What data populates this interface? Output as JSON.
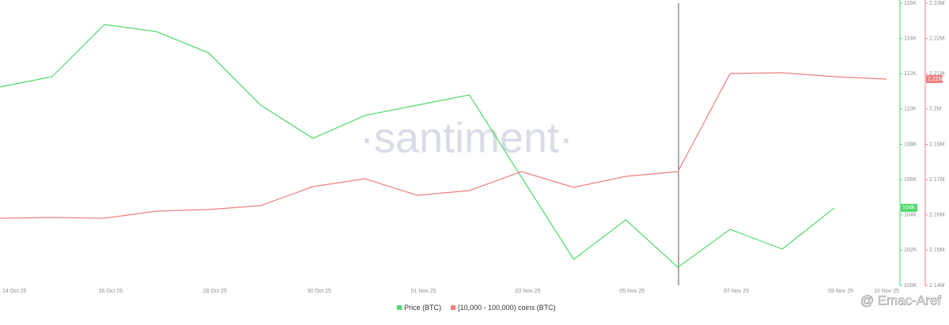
{
  "chart_data": {
    "type": "line",
    "watermark": "·santiment·",
    "credit": "@ Emac-Aref",
    "categories": [
      "24 Oct 25",
      null,
      "26 Oct 25",
      null,
      "28 Oct 25",
      null,
      "30 Oct 25",
      null,
      "01 Nov 25",
      null,
      "03 Nov 25",
      null,
      "05 Nov 25",
      null,
      "07 Nov 25",
      null,
      "09 Nov 25",
      "10 Nov 25"
    ],
    "series": [
      {
        "name": "Price (BTC)",
        "color": "#4cd96a",
        "axis": "y",
        "current_label": "104K",
        "values": [
          111250,
          111830,
          114790,
          114390,
          113180,
          110220,
          108340,
          109640,
          110220,
          110800,
          106140,
          101480,
          103720,
          101030,
          103180,
          102060,
          104400,
          null
        ]
      },
      {
        "name": "[10,000 - 100,000) coins (BTC)",
        "color": "#f07e7e",
        "axis": "y2",
        "current_label": "2.21M",
        "values": [
          2161430,
          2161680,
          2161430,
          2163700,
          2164200,
          2165460,
          2171510,
          2174030,
          2168740,
          2170250,
          2176300,
          2171260,
          2174790,
          2176300,
          2207560,
          2207820,
          2206550,
          2205800
        ]
      }
    ],
    "ylim": [
      100000,
      116000
    ],
    "yticks": [
      {
        "value": 100000,
        "label": "100K"
      },
      {
        "value": 102000,
        "label": "102K"
      },
      {
        "value": 104000,
        "label": "104K"
      },
      {
        "value": 106000,
        "label": "106K"
      },
      {
        "value": 108000,
        "label": "108K"
      },
      {
        "value": 110000,
        "label": "110K"
      },
      {
        "value": 112000,
        "label": "112K"
      },
      {
        "value": 114000,
        "label": "114K"
      },
      {
        "value": 116000,
        "label": "116K"
      }
    ],
    "y2lim": [
      2140000,
      2230000
    ],
    "y2ticks": [
      {
        "value": 2140000,
        "label": "2.14M"
      },
      {
        "value": 2151250,
        "label": "2.15M"
      },
      {
        "value": 2162500,
        "label": "2.16M"
      },
      {
        "value": 2173750,
        "label": "2.17M"
      },
      {
        "value": 2185000,
        "label": "2.19M"
      },
      {
        "value": 2196250,
        "label": "2.2M"
      },
      {
        "value": 2207500,
        "label": "2.21M"
      },
      {
        "value": 2218750,
        "label": "2.22M"
      },
      {
        "value": 2230000,
        "label": "2.23M"
      }
    ]
  }
}
